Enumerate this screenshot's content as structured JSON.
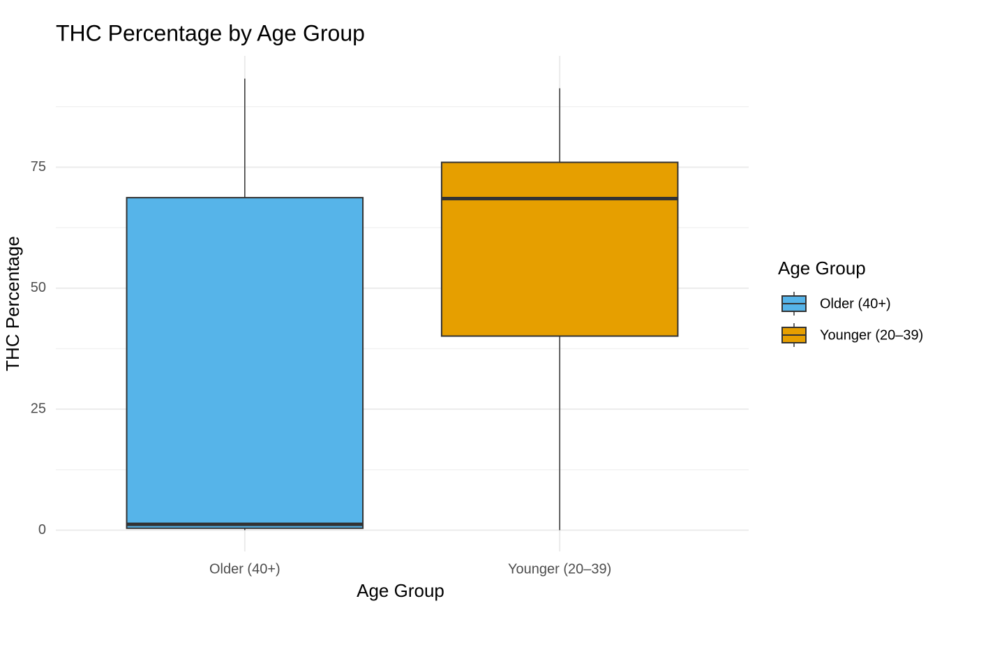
{
  "chart_data": {
    "type": "box",
    "title": "THC Percentage by Age Group",
    "x_label": "Age Group",
    "y_label": "THC Percentage",
    "legend_title": "Age Group",
    "categories": [
      "Older (40+)",
      "Younger (20–39)"
    ],
    "boxes": [
      {
        "min": 0,
        "q1": 0.4,
        "median": 1.2,
        "q3": 68.7,
        "max": 93.3,
        "color": "#56b4e9"
      },
      {
        "min": 0,
        "q1": 40.1,
        "median": 68.5,
        "q3": 76,
        "max": 91.3,
        "color": "#e69f00"
      }
    ],
    "ylim": [
      -4.4,
      98
    ],
    "yticks": [
      0,
      25,
      50,
      75
    ],
    "minor_yticks": [
      12.5,
      37.5,
      62.5,
      87.5
    ],
    "grid": true,
    "legend": "right"
  }
}
